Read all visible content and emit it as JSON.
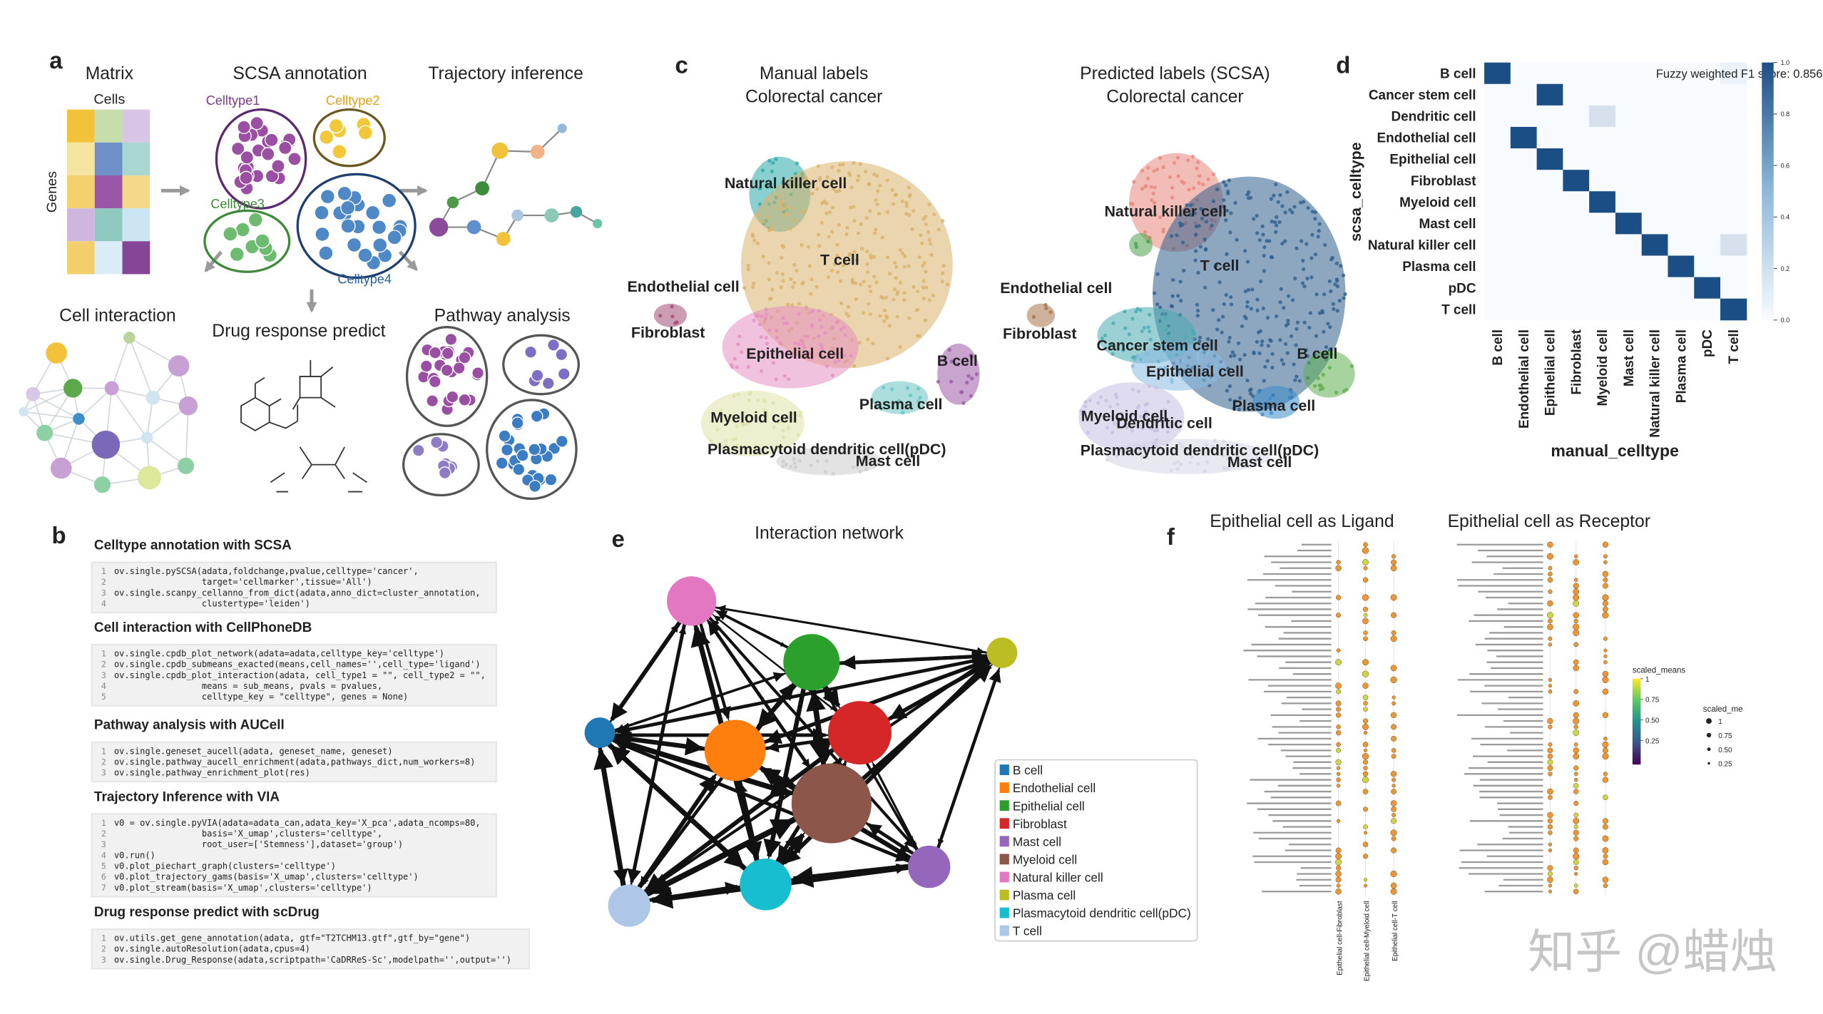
{
  "panel_labels": [
    "a",
    "b",
    "c",
    "d",
    "e",
    "f"
  ],
  "panel_a": {
    "matrix_title": "Matrix",
    "cells_label": "Cells",
    "genes_label": "Genes",
    "scsa_title": "SCSA annotation",
    "celltypes": [
      "Celltype1",
      "Celltype2",
      "Celltype3",
      "Celltype4"
    ],
    "trajectory_title": "Trajectory inference",
    "interaction_title": "Cell interaction",
    "drug_title": "Drug response predict",
    "pathway_title": "Pathway analysis"
  },
  "panel_b": {
    "sections": [
      {
        "heading": "Celltype annotation with SCSA",
        "lines": [
          {
            "n": 1,
            "code": "ov.single.pySCSA(adata,foldchange,pvalue,celltype='cancer',"
          },
          {
            "n": 2,
            "code": "                 target='cellmarker',tissue='All')"
          },
          {
            "n": 3,
            "code": "ov.single.scanpy_cellanno_from_dict(adata,anno_dict=cluster_annotation,"
          },
          {
            "n": 4,
            "code": "                 clustertype='leiden')"
          }
        ]
      },
      {
        "heading": "Cell interaction with CellPhoneDB",
        "lines": [
          {
            "n": 1,
            "code": "ov.single.cpdb_plot_network(adata=adata,celltype_key='celltype')"
          },
          {
            "n": 2,
            "code": "ov.single.cpdb_submeans_exacted(means,cell_names='',cell_type='ligand')"
          },
          {
            "n": 3,
            "code": "ov.single.cpdb_plot_interaction(adata, cell_type1 = \"\", cell_type2 = \"\","
          },
          {
            "n": 4,
            "code": "                 means = sub_means, pvals = pvalues,"
          },
          {
            "n": 5,
            "code": "                 celltype_key = \"celltype\", genes = None)"
          }
        ]
      },
      {
        "heading": "Pathway analysis with AUCell",
        "lines": [
          {
            "n": 1,
            "code": "ov.single.geneset_aucell(adata, geneset_name, geneset)"
          },
          {
            "n": 2,
            "code": "ov.single.pathway_aucell_enrichment(adata,pathways_dict,num_workers=8)"
          },
          {
            "n": 3,
            "code": "ov.single.pathway_enrichment_plot(res)"
          }
        ]
      },
      {
        "heading": "Trajectory Inference with VIA",
        "lines": [
          {
            "n": 1,
            "code": "v0 = ov.single.pyVIA(adata=adata_can,adata_key='X_pca',adata_ncomps=80,"
          },
          {
            "n": 2,
            "code": "                 basis='X_umap',clusters='celltype',"
          },
          {
            "n": 3,
            "code": "                 root_user=['Stemness'],dataset='group')"
          },
          {
            "n": 4,
            "code": "v0.run()"
          },
          {
            "n": 5,
            "code": "v0.plot_piechart_graph(clusters='celltype')"
          },
          {
            "n": 6,
            "code": "v0.plot_trajectory_gams(basis='X_umap',clusters='celltype')"
          },
          {
            "n": 7,
            "code": "v0.plot_stream(basis='X_umap',clusters='celltype')"
          }
        ]
      },
      {
        "heading": "Drug response predict with scDrug",
        "lines": [
          {
            "n": 1,
            "code": "ov.utils.get_gene_annotation(adata, gtf=\"T2TCHM13.gtf\",gtf_by=\"gene\")"
          },
          {
            "n": 2,
            "code": "ov.single.autoResolution(adata,cpus=4)"
          },
          {
            "n": 3,
            "code": "ov.single.Drug_Response(adata,scriptpath='CaDRReS-Sc',modelpath='',output='')"
          }
        ]
      }
    ]
  },
  "panel_c": {
    "plots": [
      {
        "title_lines": [
          "Manual labels",
          "Colorectal cancer"
        ],
        "labels": [
          "Natural killer cell",
          "T cell",
          "Endothelial cell",
          "Fibroblast",
          "Epithelial cell",
          "B cell",
          "Plasma cell",
          "Myeloid cell",
          "Plasmacytoid dendritic cell(pDC)",
          "Mast cell"
        ]
      },
      {
        "title_lines": [
          "Predicted labels (SCSA)",
          "Colorectal cancer"
        ],
        "labels": [
          "Natural killer cell",
          "T cell",
          "Endothelial cell",
          "Fibroblast",
          "Cancer stem cell",
          "B cell",
          "Epithelial cell",
          "Plasma cell",
          "Myeloid cell",
          "Dendritic cell",
          "Plasmacytoid dendritic cell(pDC)",
          "Mast cell"
        ]
      }
    ]
  },
  "chart_data": {
    "type": "heatmap",
    "title": "Fuzzy weighted F1 score: 0.856",
    "xlabel": "manual_celltype",
    "ylabel": "scsa_celltype",
    "rows": [
      "B cell",
      "Cancer stem cell",
      "Dendritic cell",
      "Endothelial cell",
      "Epithelial cell",
      "Fibroblast",
      "Myeloid cell",
      "Mast cell",
      "Natural killer cell",
      "Plasma cell",
      "pDC",
      "T cell"
    ],
    "columns": [
      "B cell",
      "Endothelial cell",
      "Epithelial cell",
      "Fibroblast",
      "Myeloid cell",
      "Mast cell",
      "Natural killer cell",
      "Plasma cell",
      "pDC",
      "T cell"
    ],
    "values": [
      [
        1,
        0,
        0,
        0,
        0,
        0,
        0,
        0,
        0,
        0.05
      ],
      [
        0,
        0,
        1,
        0,
        0,
        0,
        0,
        0,
        0,
        0
      ],
      [
        0,
        0,
        0,
        0,
        0.15,
        0,
        0,
        0,
        0,
        0
      ],
      [
        0,
        1,
        0,
        0,
        0,
        0,
        0,
        0,
        0,
        0
      ],
      [
        0,
        0,
        1,
        0,
        0,
        0,
        0,
        0,
        0,
        0
      ],
      [
        0,
        0,
        0,
        1,
        0,
        0,
        0,
        0,
        0,
        0
      ],
      [
        0,
        0,
        0,
        0,
        1,
        0,
        0,
        0,
        0,
        0
      ],
      [
        0,
        0,
        0,
        0,
        0,
        1,
        0,
        0,
        0,
        0
      ],
      [
        0,
        0,
        0,
        0,
        0,
        0,
        1,
        0,
        0,
        0.15
      ],
      [
        0,
        0,
        0,
        0,
        0,
        0,
        0,
        1,
        0,
        0
      ],
      [
        0,
        0,
        0,
        0,
        0,
        0,
        0,
        0,
        1,
        0
      ],
      [
        0,
        0,
        0,
        0,
        0,
        0,
        0,
        0,
        0,
        1
      ]
    ],
    "colorbar_lim": [
      0,
      1
    ],
    "colorbar_ticks": [
      {
        "value": 0,
        "label": "0.0"
      },
      0.2,
      0.4,
      0.6,
      0.8,
      {
        "value": 1,
        "label": "1.0"
      }
    ],
    "colors": [
      "#f7fbff",
      "#1c4e86"
    ]
  },
  "panel_e": {
    "title": "Interaction network",
    "nodes": [
      {
        "name": "B cell",
        "color": "#1f77b4"
      },
      {
        "name": "Endothelial cell",
        "color": "#ff7f0e"
      },
      {
        "name": "Epithelial cell",
        "color": "#2ca02c"
      },
      {
        "name": "Fibroblast",
        "color": "#d62728"
      },
      {
        "name": "Mast cell",
        "color": "#9467bd"
      },
      {
        "name": "Myeloid cell",
        "color": "#8c564b"
      },
      {
        "name": "Natural killer cell",
        "color": "#e377c2"
      },
      {
        "name": "Plasma cell",
        "color": "#bcbd22"
      },
      {
        "name": "Plasmacytoid dendritic cell(pDC)",
        "color": "#17becf"
      },
      {
        "name": "T cell",
        "color": "#aec7e8"
      }
    ]
  },
  "panel_f": {
    "titles": [
      "Epithelial cell as Ligand",
      "Epithelial cell as Receptor"
    ],
    "x_labels": [
      "Epithelial cell-Fibroblast",
      "Epithelial cell-Myeloid cell",
      "Epithelial cell-T cell"
    ],
    "colorbar_title": "scaled_means",
    "colorbar_ticks": [
      1,
      0.75,
      {
        "value": 0.5,
        "label": "0.50"
      },
      0.25
    ],
    "size_title": "scaled_me",
    "size_ticks": [
      1,
      0.75,
      {
        "value": 0.5,
        "label": "0.50"
      },
      0.25
    ]
  },
  "watermark": "知乎 @蜡烛"
}
